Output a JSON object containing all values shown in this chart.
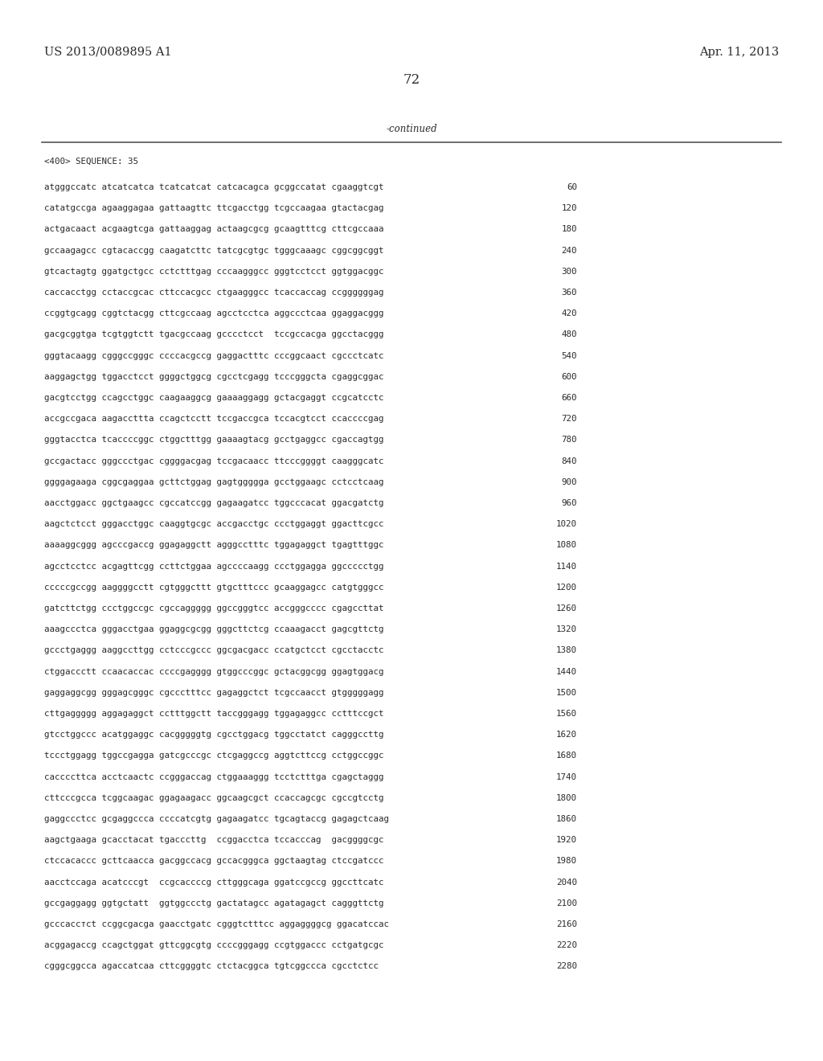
{
  "header_left": "US 2013/0089895 A1",
  "header_right": "Apr. 11, 2013",
  "page_number": "72",
  "continued_label": "-continued",
  "sequence_label": "<400> SEQUENCE: 35",
  "background_color": "#ffffff",
  "text_color": "#2a2a2a",
  "font_size_header": 10.5,
  "font_size_body": 7.8,
  "font_size_page": 12,
  "line_color": "#555555",
  "sequence_lines": [
    [
      "atgggccatc atcatcatca tcatcatcat catcacagca gcggccatat cgaaggtcgt",
      "60"
    ],
    [
      "catatgccga agaaggagaa gattaagttc ttcgacctgg tcgccaagaa gtactacgag",
      "120"
    ],
    [
      "actgacaact acgaagtcga gattaaggag actaagcgcg gcaagtttcg cttcgccaaa",
      "180"
    ],
    [
      "gccaagagcc cgtacaccgg caagatcttc tatcgcgtgc tgggcaaagc cggcggcggt",
      "240"
    ],
    [
      "gtcactagtg ggatgctgcc cctctttgag cccaagggcc gggtcctcct ggtggacggc",
      "300"
    ],
    [
      "caccacctgg cctaccgcac cttccacgcc ctgaagggcc tcaccaccag ccggggggag",
      "360"
    ],
    [
      "ccggtgcagg cggtctacgg cttcgccaag agcctcctca aggccctcaa ggaggacggg",
      "420"
    ],
    [
      "gacgcggtga tcgtggtctt tgacgccaag gcccctcct  tccgccacga ggcctacggg",
      "480"
    ],
    [
      "gggtacaagg cgggccgggc ccccacgccg gaggactttc cccggcaact cgccctcatc",
      "540"
    ],
    [
      "aaggagctgg tggacctcct ggggctggcg cgcctcgagg tcccgggcta cgaggcggac",
      "600"
    ],
    [
      "gacgtcctgg ccagcctggc caagaaggcg gaaaaggagg gctacgaggt ccgcatcctc",
      "660"
    ],
    [
      "accgccgaca aagaccttta ccagctcctt tccgaccgca tccacgtcct ccaccccgag",
      "720"
    ],
    [
      "gggtacctca tcaccccggc ctggctttgg gaaaagtacg gcctgaggcc cgaccagtgg",
      "780"
    ],
    [
      "gccgactacc gggccctgac cggggacgag tccgacaacc ttcccggggt caagggcatc",
      "840"
    ],
    [
      "ggggagaaga cggcgaggaa gcttctggag gagtggggga gcctggaagc cctcctcaag",
      "900"
    ],
    [
      "aacctggacc ggctgaagcc cgccatccgg gagaagatcc tggcccacat ggacgatctg",
      "960"
    ],
    [
      "aagctctcct gggacctggc caaggtgcgc accgacctgc ccctggaggt ggacttcgcc",
      "1020"
    ],
    [
      "aaaaggcggg agcccgaccg ggagaggctt agggcctttc tggagaggct tgagtttggc",
      "1080"
    ],
    [
      "agcctcctcc acgagttcgg ccttctggaa agccccaagg ccctggagga ggccccctgg",
      "1140"
    ],
    [
      "cccccgccgg aaggggcctt cgtgggcttt gtgctttccc gcaaggagcc catgtgggcc",
      "1200"
    ],
    [
      "gatcttctgg ccctggccgc cgccaggggg ggccgggtcc accgggcccc cgagccttat",
      "1260"
    ],
    [
      "aaagccctca gggacctgaa ggaggcgcgg gggcttctcg ccaaagacct gagcgttctg",
      "1320"
    ],
    [
      "gccctgaggg aaggccttgg cctcccgccc ggcgacgacc ccatgctcct cgcctacctc",
      "1380"
    ],
    [
      "ctggaccctt ccaacaccac ccccgagggg gtggcccggc gctacggcgg ggagtggacg",
      "1440"
    ],
    [
      "gaggaggcgg gggagcgggc cgccctttcc gagaggctct tcgccaacct gtgggggagg",
      "1500"
    ],
    [
      "cttgaggggg aggagaggct cctttggctt taccgggagg tggagaggcc cctttccgct",
      "1560"
    ],
    [
      "gtcctggccc acatggaggc cacgggggtg cgcctggacg tggcctatct cagggccttg",
      "1620"
    ],
    [
      "tccctggagg tggccgagga gatcgcccgc ctcgaggccg aggtcttccg cctggccggc",
      "1680"
    ],
    [
      "caccccttca acctcaactc ccgggaccag ctggaaaggg tcctctttga cgagctaggg",
      "1740"
    ],
    [
      "cttcccgcca tcggcaagac ggagaagacc ggcaagcgct ccaccagcgc cgccgtcctg",
      "1800"
    ],
    [
      "gaggccctcc gcgaggccca ccccatcgtg gagaagatcc tgcagtaccg gagagctcaag",
      "1860"
    ],
    [
      "aagctgaaga gcacctacat tgacccttg  ccggacctca tccacccag  gacggggcgc",
      "1920"
    ],
    [
      "ctccacaccc gcttcaacca gacggccacg gccacgggca ggctaagtag ctccgatccc",
      "1980"
    ],
    [
      "aacctccaga acatcccgt  ccgcaccccg cttgggcaga ggatccgccg ggccttcatc",
      "2040"
    ],
    [
      "gccgaggagg ggtgctatt  ggtggccctg gactatagcc agatagagct cagggttctg",
      "2100"
    ],
    [
      "gcccaccтct ccggcgacga gaacctgatc cgggtctttcc aggaggggcg ggacatccac",
      "2160"
    ],
    [
      "acggagaccg ccagctggat gttcggcgtg ccccgggagg ccgtggaccc cctgatgcgc",
      "2220"
    ],
    [
      "cgggcggcca agaccatcaa cttcggggtc ctctacggca tgtcggccca cgcctctcc",
      "2280"
    ]
  ]
}
